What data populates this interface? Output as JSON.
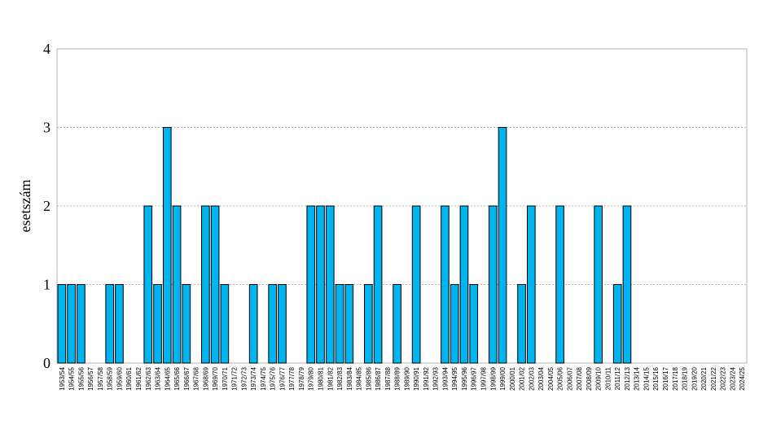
{
  "chart_data": {
    "type": "bar",
    "ylabel": "esetszám",
    "xlabel": "",
    "ylim": [
      0,
      4
    ],
    "yticks": [
      "0",
      "1",
      "2",
      "3",
      "4"
    ],
    "grid": true,
    "bar_color": "#00B4F0",
    "bar_edge_color": "#000000",
    "categories": [
      "1953/54",
      "1954/55",
      "1955/56",
      "1956/57",
      "1957/58",
      "1958/59",
      "1959/60",
      "1960/61",
      "1961/62",
      "1962/63",
      "1963/64",
      "1964/65",
      "1965/66",
      "1966/67",
      "1967/68",
      "1968/69",
      "1969/70",
      "1970/71",
      "1971/72",
      "1972/73",
      "1973/74",
      "1974/75",
      "1975/76",
      "1976/77",
      "1977/78",
      "1978/79",
      "1979/80",
      "1980/81",
      "1981/82",
      "1982/83",
      "1983/84",
      "1984/85",
      "1985/86",
      "1986/87",
      "1987/88",
      "1988/89",
      "1989/90",
      "1990/91",
      "1991/92",
      "1992/93",
      "1993/94",
      "1994/95",
      "1995/96",
      "1996/97",
      "1997/98",
      "1998/99",
      "1999/00",
      "2000/01",
      "2001/02",
      "2002/03",
      "2003/04",
      "2004/05",
      "2005/06",
      "2006/07",
      "2007/08",
      "2008/09",
      "2009/10",
      "2010/11",
      "2011/12",
      "2012/13",
      "2013/14",
      "2014/15",
      "2015/16",
      "2016/17",
      "2017/18",
      "2018/19",
      "2019/20",
      "2020/21",
      "2021/22",
      "2022/23",
      "2023/24",
      "2024/25"
    ],
    "values": [
      1,
      1,
      1,
      0,
      0,
      1,
      1,
      0,
      0,
      2,
      1,
      3,
      2,
      1,
      0,
      2,
      2,
      1,
      0,
      0,
      1,
      0,
      1,
      1,
      0,
      0,
      2,
      2,
      2,
      1,
      1,
      0,
      1,
      2,
      0,
      1,
      0,
      2,
      0,
      0,
      2,
      1,
      2,
      1,
      0,
      2,
      3,
      0,
      1,
      2,
      0,
      0,
      2,
      0,
      0,
      0,
      2,
      0,
      1,
      2,
      0,
      0,
      0,
      0,
      0,
      0,
      0,
      0,
      0,
      0,
      0,
      0
    ]
  }
}
